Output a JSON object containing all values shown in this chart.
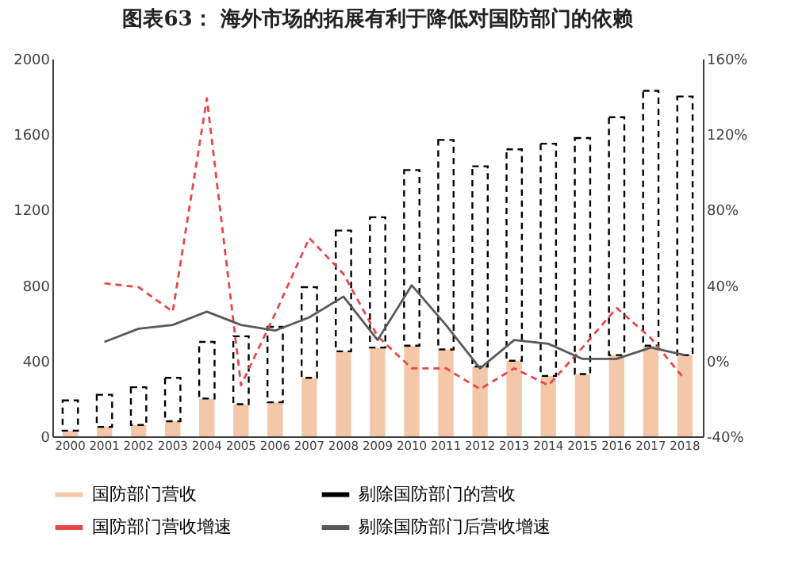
{
  "chart_data": {
    "type": "bar",
    "title": "图表63：    海外市场的拓展有利于降低对国防部门的依赖",
    "categories": [
      "2000",
      "2001",
      "2002",
      "2003",
      "2004",
      "2005",
      "2006",
      "2007",
      "2008",
      "2009",
      "2010",
      "2011",
      "2012",
      "2013",
      "2014",
      "2015",
      "2016",
      "2017",
      "2018"
    ],
    "stacked": true,
    "series": [
      {
        "name": "国防部门营收",
        "color": "#f4c7a8",
        "values": [
          30,
          50,
          60,
          80,
          200,
          170,
          180,
          310,
          450,
          470,
          480,
          460,
          370,
          400,
          320,
          330,
          430,
          480,
          430
        ]
      },
      {
        "name": "剔除国防部门的营收",
        "color": "#000000",
        "line_style": "dashed",
        "values": [
          160,
          170,
          200,
          230,
          300,
          360,
          400,
          480,
          640,
          690,
          930,
          1110,
          1060,
          1120,
          1230,
          1250,
          1260,
          1350,
          1370
        ]
      },
      {
        "name": "国防部门营收增速",
        "type": "line",
        "axis": "y2",
        "color": "#e8474a",
        "line_style": "dashed",
        "values": [
          null,
          41,
          39,
          26,
          139,
          -13,
          25,
          65,
          46,
          13,
          -4,
          -4,
          -15,
          -4,
          -13,
          7,
          28,
          12,
          -10
        ]
      },
      {
        "name": "剔除国防部门后营收增速",
        "type": "line",
        "axis": "y2",
        "color": "#595959",
        "line_style": "solid",
        "values": [
          null,
          10,
          17,
          19,
          26,
          19,
          16,
          23,
          34,
          11,
          40,
          19,
          -4,
          11,
          9,
          1,
          1,
          7,
          3
        ]
      }
    ],
    "ylim": [
      0,
      2000
    ],
    "yticks": [
      0,
      400,
      800,
      1200,
      1600,
      2000
    ],
    "y2lim": [
      -40,
      160
    ],
    "y2ticks": [
      {
        "value": -40,
        "label": "-40%"
      },
      {
        "value": 0,
        "label": "0%"
      },
      {
        "value": 40,
        "label": "40%"
      },
      {
        "value": 80,
        "label": "80%"
      },
      {
        "value": 120,
        "label": "120%"
      },
      {
        "value": 160,
        "label": "160%"
      }
    ],
    "grid": false,
    "legend": "bottom"
  }
}
